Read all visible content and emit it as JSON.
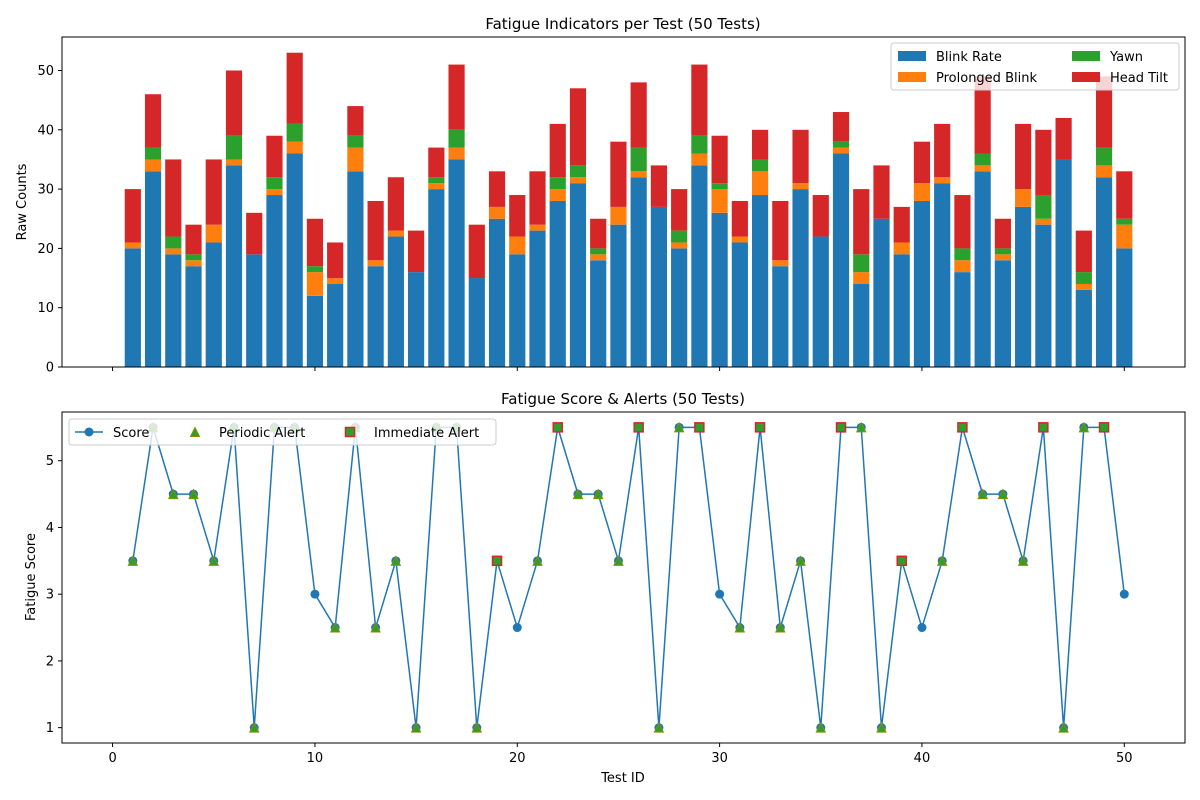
{
  "chart_data": [
    {
      "type": "bar",
      "stacked": true,
      "title": "Fatigue Indicators per Test (50 Tests)",
      "xlabel": "",
      "ylabel": "Raw Counts",
      "xlim": [
        -2.5,
        53.0
      ],
      "ylim": [
        0,
        55.65
      ],
      "yticks": [
        0,
        10,
        20,
        30,
        40,
        50
      ],
      "xticks": [
        0,
        10,
        20,
        30,
        40,
        50
      ],
      "x_ticklabels_visible": false,
      "grid": false,
      "legend": {
        "placement": "top-right",
        "ncol": 2
      },
      "x": [
        1,
        2,
        3,
        4,
        5,
        6,
        7,
        8,
        9,
        10,
        11,
        12,
        13,
        14,
        15,
        16,
        17,
        18,
        19,
        20,
        21,
        22,
        23,
        24,
        25,
        26,
        27,
        28,
        29,
        30,
        31,
        32,
        33,
        34,
        35,
        36,
        37,
        38,
        39,
        40,
        41,
        42,
        43,
        44,
        45,
        46,
        47,
        48,
        49,
        50
      ],
      "series": [
        {
          "name": "Blink Rate",
          "color": "#1f77b4",
          "values": [
            20,
            33,
            19,
            17,
            21,
            34,
            19,
            29,
            36,
            12,
            14,
            33,
            17,
            22,
            16,
            30,
            35,
            15,
            25,
            19,
            23,
            28,
            31,
            18,
            24,
            32,
            27,
            20,
            34,
            26,
            21,
            29,
            17,
            30,
            22,
            36,
            14,
            25,
            19,
            28,
            31,
            16,
            33,
            18,
            27,
            24,
            35,
            13,
            32,
            20
          ]
        },
        {
          "name": "Prolonged Blink",
          "color": "#ff7f0e",
          "values": [
            1,
            2,
            1,
            1,
            3,
            1,
            0,
            1,
            2,
            4,
            1,
            4,
            1,
            1,
            0,
            1,
            2,
            0,
            2,
            3,
            1,
            2,
            1,
            1,
            3,
            1,
            0,
            1,
            2,
            4,
            1,
            4,
            1,
            1,
            0,
            1,
            2,
            0,
            2,
            3,
            1,
            2,
            1,
            1,
            3,
            1,
            0,
            1,
            2,
            4
          ]
        },
        {
          "name": "Yawn",
          "color": "#2ca02c",
          "values": [
            0,
            2,
            2,
            1,
            0,
            4,
            0,
            2,
            3,
            1,
            0,
            2,
            0,
            0,
            0,
            1,
            3,
            0,
            0,
            0,
            0,
            2,
            2,
            1,
            0,
            4,
            0,
            2,
            3,
            1,
            0,
            2,
            0,
            0,
            0,
            1,
            3,
            0,
            0,
            0,
            0,
            2,
            2,
            1,
            0,
            4,
            0,
            2,
            3,
            1
          ]
        },
        {
          "name": "Head Tilt",
          "color": "#d62728",
          "values": [
            9,
            9,
            13,
            5,
            11,
            11,
            7,
            7,
            12,
            8,
            6,
            5,
            10,
            9,
            7,
            5,
            11,
            9,
            6,
            7,
            9,
            9,
            13,
            5,
            11,
            11,
            7,
            7,
            12,
            8,
            6,
            5,
            10,
            9,
            7,
            5,
            11,
            9,
            6,
            7,
            9,
            9,
            13,
            5,
            11,
            11,
            7,
            7,
            12,
            8
          ]
        }
      ]
    },
    {
      "type": "line",
      "title": "Fatigue Score & Alerts (50 Tests)",
      "xlabel": "Test ID",
      "ylabel": "Fatigue Score",
      "xlim": [
        -2.5,
        53.0
      ],
      "ylim": [
        0.77,
        5.73
      ],
      "yticks": [
        1,
        2,
        3,
        4,
        5
      ],
      "xticks": [
        0,
        10,
        20,
        30,
        40,
        50
      ],
      "grid": false,
      "legend": {
        "placement": "top-left",
        "ncol": 3
      },
      "x": [
        1,
        2,
        3,
        4,
        5,
        6,
        7,
        8,
        9,
        10,
        11,
        12,
        13,
        14,
        15,
        16,
        17,
        18,
        19,
        20,
        21,
        22,
        23,
        24,
        25,
        26,
        27,
        28,
        29,
        30,
        31,
        32,
        33,
        34,
        35,
        36,
        37,
        38,
        39,
        40,
        41,
        42,
        43,
        44,
        45,
        46,
        47,
        48,
        49,
        50
      ],
      "series": [
        {
          "name": "Score",
          "color": "#1f77b4",
          "values": [
            3.5,
            5.5,
            4.5,
            4.5,
            3.5,
            5.5,
            1,
            5.5,
            5.5,
            3,
            2.5,
            5.5,
            2.5,
            3.5,
            1,
            5.5,
            5.5,
            1,
            3.5,
            2.5,
            3.5,
            5.5,
            4.5,
            4.5,
            3.5,
            5.5,
            1,
            5.5,
            5.5,
            3,
            2.5,
            5.5,
            2.5,
            3.5,
            1,
            5.5,
            5.5,
            1,
            3.5,
            2.5,
            3.5,
            5.5,
            4.5,
            4.5,
            3.5,
            5.5,
            1,
            5.5,
            5.5,
            3
          ]
        },
        {
          "name": "Periodic Alert",
          "color": "#2ca02c",
          "edge_color": "#8c8c00",
          "x": [
            1,
            2,
            3,
            4,
            5,
            6,
            7,
            8,
            9,
            11,
            12,
            13,
            14,
            15,
            16,
            17,
            18,
            21,
            23,
            24,
            25,
            27,
            28,
            31,
            33,
            34,
            35,
            37,
            38,
            41,
            43,
            44,
            45,
            47,
            48
          ],
          "values": [
            3.5,
            5.5,
            4.5,
            4.5,
            3.5,
            5.5,
            1,
            5.5,
            5.5,
            2.5,
            5.5,
            2.5,
            3.5,
            1,
            5.5,
            5.5,
            1,
            3.5,
            4.5,
            4.5,
            3.5,
            1,
            5.5,
            2.5,
            2.5,
            3.5,
            1,
            5.5,
            1,
            3.5,
            4.5,
            4.5,
            3.5,
            1,
            5.5
          ]
        },
        {
          "name": "Immediate Alert",
          "color": "#2ca02c",
          "edge_color": "#d62728",
          "x": [
            19,
            22,
            26,
            29,
            32,
            36,
            39,
            42,
            46,
            49
          ],
          "values": [
            3.5,
            5.5,
            5.5,
            5.5,
            5.5,
            5.5,
            3.5,
            5.5,
            5.5,
            5.5
          ]
        }
      ]
    }
  ]
}
